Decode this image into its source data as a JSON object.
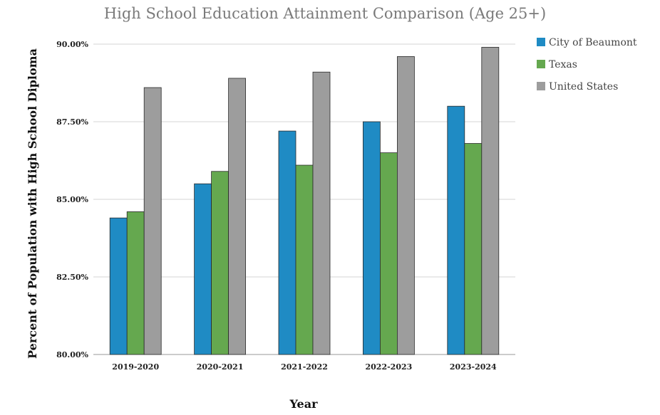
{
  "chart_data": {
    "type": "bar",
    "title": "High School Education Attainment Comparison (Age 25+)",
    "xlabel": "Year",
    "ylabel": "Percent of Population with High School Diploma",
    "categories": [
      "2019-2020",
      "2020-2021",
      "2021-2022",
      "2022-2023",
      "2023-2024"
    ],
    "series": [
      {
        "name": "City of Beaumont",
        "color": "#1f8bc4",
        "values": [
          84.4,
          85.5,
          87.2,
          87.5,
          88.0
        ]
      },
      {
        "name": "Texas",
        "color": "#65a84f",
        "values": [
          84.6,
          85.9,
          86.1,
          86.5,
          86.8
        ]
      },
      {
        "name": "United States",
        "color": "#9d9d9d",
        "values": [
          88.6,
          88.9,
          89.1,
          89.6,
          89.9
        ]
      }
    ],
    "ylim": [
      80,
      90
    ],
    "yticks": [
      80,
      82.5,
      85,
      87.5,
      90
    ],
    "ytick_labels": [
      "80.00%",
      "82.50%",
      "85.00%",
      "87.50%",
      "90.00%"
    ],
    "grid": true,
    "legend_position": "right"
  }
}
